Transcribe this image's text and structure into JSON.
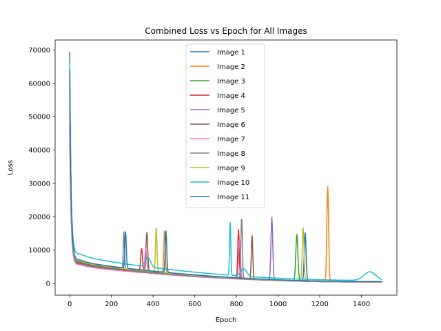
{
  "chart_data": {
    "type": "line",
    "title": "Combined Loss vs Epoch for All Images",
    "xlabel": "Epoch",
    "ylabel": "Loss",
    "xlim": [
      -70,
      1570
    ],
    "ylim": [
      -3500,
      73000
    ],
    "xticks": [
      0,
      200,
      400,
      600,
      800,
      1000,
      1200,
      1400
    ],
    "yticks": [
      0,
      10000,
      20000,
      30000,
      40000,
      50000,
      60000,
      70000
    ],
    "grid": false,
    "legend_position": "top-center",
    "x_max": 1500,
    "series": [
      {
        "name": "Image 1",
        "color": "#1f77b4",
        "start": 69500,
        "base": 6500,
        "end": 500,
        "spikes": [
          [
            1130,
            14500,
            6
          ]
        ]
      },
      {
        "name": "Image 2",
        "color": "#ff7f0e",
        "start": 62000,
        "base": 6600,
        "end": 500,
        "spikes": [
          [
            455,
            13000,
            5
          ],
          [
            1238,
            28500,
            6
          ]
        ]
      },
      {
        "name": "Image 3",
        "color": "#2ca02c",
        "start": 58000,
        "base": 6300,
        "end": 450,
        "spikes": [
          [
            1090,
            14000,
            7
          ]
        ]
      },
      {
        "name": "Image 4",
        "color": "#d62728",
        "start": 55000,
        "base": 6200,
        "end": 400,
        "spikes": [
          [
            345,
            7000,
            6
          ],
          [
            810,
            14800,
            5
          ]
        ]
      },
      {
        "name": "Image 5",
        "color": "#9467bd",
        "start": 50000,
        "base": 5800,
        "end": 400,
        "spikes": [
          [
            970,
            19000,
            6
          ]
        ]
      },
      {
        "name": "Image 6",
        "color": "#8c564b",
        "start": 48000,
        "base": 6000,
        "end": 450,
        "spikes": [
          [
            370,
            12000,
            6
          ],
          [
            875,
            13500,
            5
          ]
        ]
      },
      {
        "name": "Image 7",
        "color": "#e377c2",
        "start": 45000,
        "base": 5600,
        "end": 400,
        "spikes": [
          [
            365,
            7500,
            6
          ],
          [
            815,
            12000,
            6
          ]
        ]
      },
      {
        "name": "Image 8",
        "color": "#7f7f7f",
        "start": 60000,
        "base": 6100,
        "end": 450,
        "spikes": [
          [
            260,
            11500,
            4
          ],
          [
            825,
            18500,
            5
          ]
        ]
      },
      {
        "name": "Image 9",
        "color": "#bcbd22",
        "start": 57000,
        "base": 6700,
        "end": 500,
        "spikes": [
          [
            415,
            13500,
            5
          ],
          [
            1120,
            16000,
            6
          ]
        ]
      },
      {
        "name": "Image 10",
        "color": "#17becf",
        "start": 66000,
        "base": 8800,
        "end": 900,
        "spikes": [
          [
            770,
            16000,
            4
          ]
        ],
        "bumps": [
          [
            375,
            2800,
            18
          ],
          [
            835,
            2200,
            20
          ],
          [
            1440,
            2600,
            40
          ]
        ]
      },
      {
        "name": "Image 11",
        "color": "#1f77b4",
        "start": 64000,
        "base": 7000,
        "end": 550,
        "spikes": [
          [
            268,
            11000,
            5
          ],
          [
            462,
            12500,
            5
          ]
        ]
      }
    ]
  }
}
